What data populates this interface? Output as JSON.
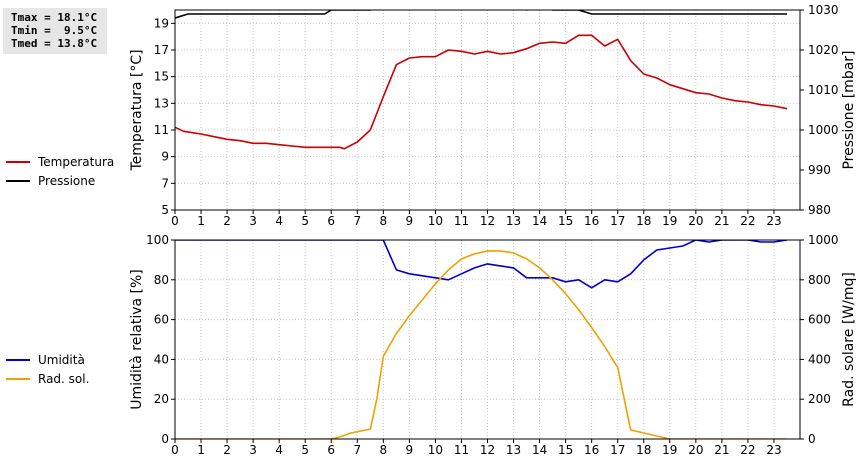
{
  "stats": {
    "tmax": "Tmax = 18.1°C",
    "tmin": "Tmin =  9.5°C",
    "tmed": "Tmed = 13.8°C"
  },
  "legend_top": [
    {
      "label": "Temperatura",
      "color": "#cc0000"
    },
    {
      "label": "Pressione",
      "color": "#000000"
    }
  ],
  "legend_bottom": [
    {
      "label": "Umidità",
      "color": "#0000cc"
    },
    {
      "label": "Rad. sol.",
      "color": "#f0a000"
    }
  ],
  "chart_data": [
    {
      "type": "line",
      "xlabel": "",
      "ylabel": "Temperatura [°C]",
      "ylabel_right": "Pressione [mbar]",
      "xlim": [
        0,
        24
      ],
      "ylim": [
        5,
        20
      ],
      "ylim_right": [
        980,
        1030
      ],
      "x_ticks": [
        0,
        1,
        2,
        3,
        4,
        5,
        6,
        7,
        8,
        9,
        10,
        11,
        12,
        13,
        14,
        15,
        16,
        17,
        18,
        19,
        20,
        21,
        22,
        23
      ],
      "y_ticks": [
        5,
        7,
        9,
        11,
        13,
        15,
        17,
        19
      ],
      "y_ticks_right": [
        980,
        990,
        1000,
        1010,
        1020,
        1030
      ],
      "grid": true,
      "series": [
        {
          "name": "Temperatura",
          "color": "#cc0000",
          "axis": "left",
          "x": [
            0,
            0.33,
            0.67,
            1,
            1.5,
            2,
            2.5,
            3,
            3.5,
            4,
            4.5,
            5,
            5.5,
            6,
            6.33,
            6.5,
            7,
            7.5,
            8,
            8.5,
            9,
            9.5,
            10,
            10.5,
            11,
            11.5,
            12,
            12.5,
            13,
            13.5,
            14,
            14.5,
            15,
            15.5,
            16,
            16.5,
            17,
            17.5,
            18,
            18.5,
            19,
            19.5,
            20,
            20.5,
            21,
            21.5,
            22,
            22.5,
            23,
            23.5
          ],
          "values": [
            11.2,
            10.9,
            10.8,
            10.7,
            10.5,
            10.3,
            10.2,
            10.0,
            10.0,
            9.9,
            9.8,
            9.7,
            9.7,
            9.7,
            9.7,
            9.6,
            10.1,
            11.0,
            13.5,
            15.9,
            16.4,
            16.5,
            16.5,
            17.0,
            16.9,
            16.7,
            16.9,
            16.7,
            16.8,
            17.1,
            17.5,
            17.6,
            17.5,
            18.1,
            18.1,
            17.3,
            17.8,
            16.2,
            15.2,
            14.9,
            14.4,
            14.1,
            13.8,
            13.7,
            13.4,
            13.2,
            13.1,
            12.9,
            12.8,
            12.6
          ]
        },
        {
          "name": "Pressione",
          "color": "#000000",
          "axis": "right",
          "x": [
            0,
            0.5,
            1,
            2,
            3,
            4,
            5,
            5.75,
            6,
            6.5,
            7,
            7.5,
            8,
            8.5,
            9,
            10,
            11,
            12,
            13,
            13.5,
            14,
            14.5,
            15,
            15.5,
            16,
            17,
            18,
            19,
            20,
            21,
            22,
            23,
            23.5
          ],
          "values": [
            1028,
            1029,
            1029,
            1029,
            1029,
            1029,
            1029,
            1029,
            1030,
            1030,
            1030,
            1030,
            1031,
            1031,
            1031,
            1031,
            1031,
            1031,
            1031,
            1030,
            1031,
            1030,
            1030,
            1030,
            1029,
            1029,
            1029,
            1029,
            1029,
            1029,
            1029,
            1029,
            1029
          ]
        }
      ]
    },
    {
      "type": "line",
      "xlabel": "",
      "ylabel": "Umidità relativa [%]",
      "ylabel_right": "Rad. solare [W/mq]",
      "xlim": [
        0,
        24
      ],
      "ylim": [
        0,
        100
      ],
      "ylim_right": [
        0,
        1000
      ],
      "x_ticks": [
        0,
        1,
        2,
        3,
        4,
        5,
        6,
        7,
        8,
        9,
        10,
        11,
        12,
        13,
        14,
        15,
        16,
        17,
        18,
        19,
        20,
        21,
        22,
        23
      ],
      "y_ticks": [
        0,
        20,
        40,
        60,
        80,
        100
      ],
      "y_ticks_right": [
        0,
        200,
        400,
        600,
        800,
        1000
      ],
      "grid": true,
      "series": [
        {
          "name": "Umidità",
          "color": "#0000cc",
          "axis": "left",
          "x": [
            0,
            1,
            2,
            3,
            4,
            5,
            6,
            7,
            7.75,
            8,
            8.5,
            9,
            9.5,
            10,
            10.5,
            11,
            11.5,
            12,
            12.5,
            13,
            13.5,
            14,
            14.5,
            15,
            15.5,
            16,
            16.5,
            17,
            17.5,
            18,
            18.5,
            19,
            19.5,
            20,
            20.5,
            21,
            21.5,
            22,
            22.5,
            23,
            23.5
          ],
          "values": [
            100,
            100,
            100,
            100,
            100,
            100,
            100,
            100,
            100,
            100,
            85,
            83,
            82,
            81,
            80,
            83,
            86,
            88,
            87,
            86,
            81,
            81,
            81,
            79,
            80,
            76,
            80,
            79,
            83,
            90,
            95,
            96,
            97,
            100,
            99,
            100,
            100,
            100,
            99,
            99,
            100
          ]
        },
        {
          "name": "Rad. sol.",
          "color": "#f0a000",
          "axis": "right",
          "x": [
            0,
            1,
            2,
            3,
            4,
            5,
            6,
            6.33,
            6.75,
            7.5,
            7.75,
            8,
            8.5,
            9,
            9.5,
            10,
            10.5,
            11,
            11.5,
            12,
            12.5,
            13,
            13.5,
            14,
            14.5,
            15,
            15.5,
            16,
            16.5,
            17,
            17.5,
            18,
            18.5,
            19,
            19.5,
            20,
            21,
            22,
            23,
            23.5
          ],
          "values": [
            0,
            0,
            0,
            0,
            0,
            0,
            0,
            10,
            30,
            50,
            200,
            415,
            530,
            620,
            700,
            780,
            850,
            905,
            930,
            945,
            945,
            935,
            905,
            860,
            800,
            730,
            650,
            560,
            465,
            360,
            45,
            30,
            15,
            0,
            0,
            0,
            0,
            0,
            0,
            0
          ]
        }
      ]
    }
  ]
}
